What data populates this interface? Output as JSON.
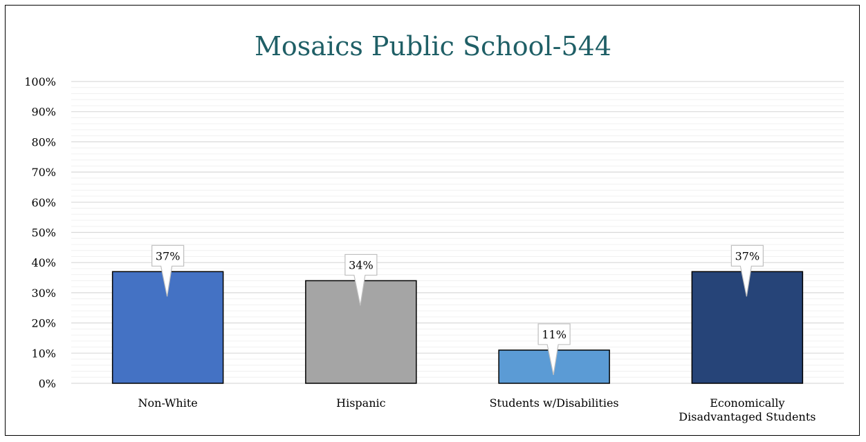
{
  "chart_data": {
    "type": "bar",
    "title": "Mosaics Public School-544",
    "xlabel": "",
    "ylabel": "",
    "categories": [
      [
        "Non-White"
      ],
      [
        "Hispanic"
      ],
      [
        "Students w/Disabilities"
      ],
      [
        "Economically",
        "Disadvantaged Students"
      ]
    ],
    "values": [
      37,
      34,
      11,
      37
    ],
    "data_labels": [
      "37%",
      "34%",
      "11%",
      "37%"
    ],
    "bar_colors": [
      "#4472C4",
      "#A5A5A5",
      "#5B9BD5",
      "#264478"
    ],
    "ylim": [
      0,
      100
    ],
    "y_ticks": [
      0,
      10,
      20,
      30,
      40,
      50,
      60,
      70,
      80,
      90,
      100
    ],
    "y_tick_labels": [
      "0%",
      "10%",
      "20%",
      "30%",
      "40%",
      "50%",
      "60%",
      "70%",
      "80%",
      "90%",
      "100%"
    ],
    "minor_grid_step": 2,
    "grid": true,
    "legend": "none",
    "title_color": "#1F5F66"
  }
}
